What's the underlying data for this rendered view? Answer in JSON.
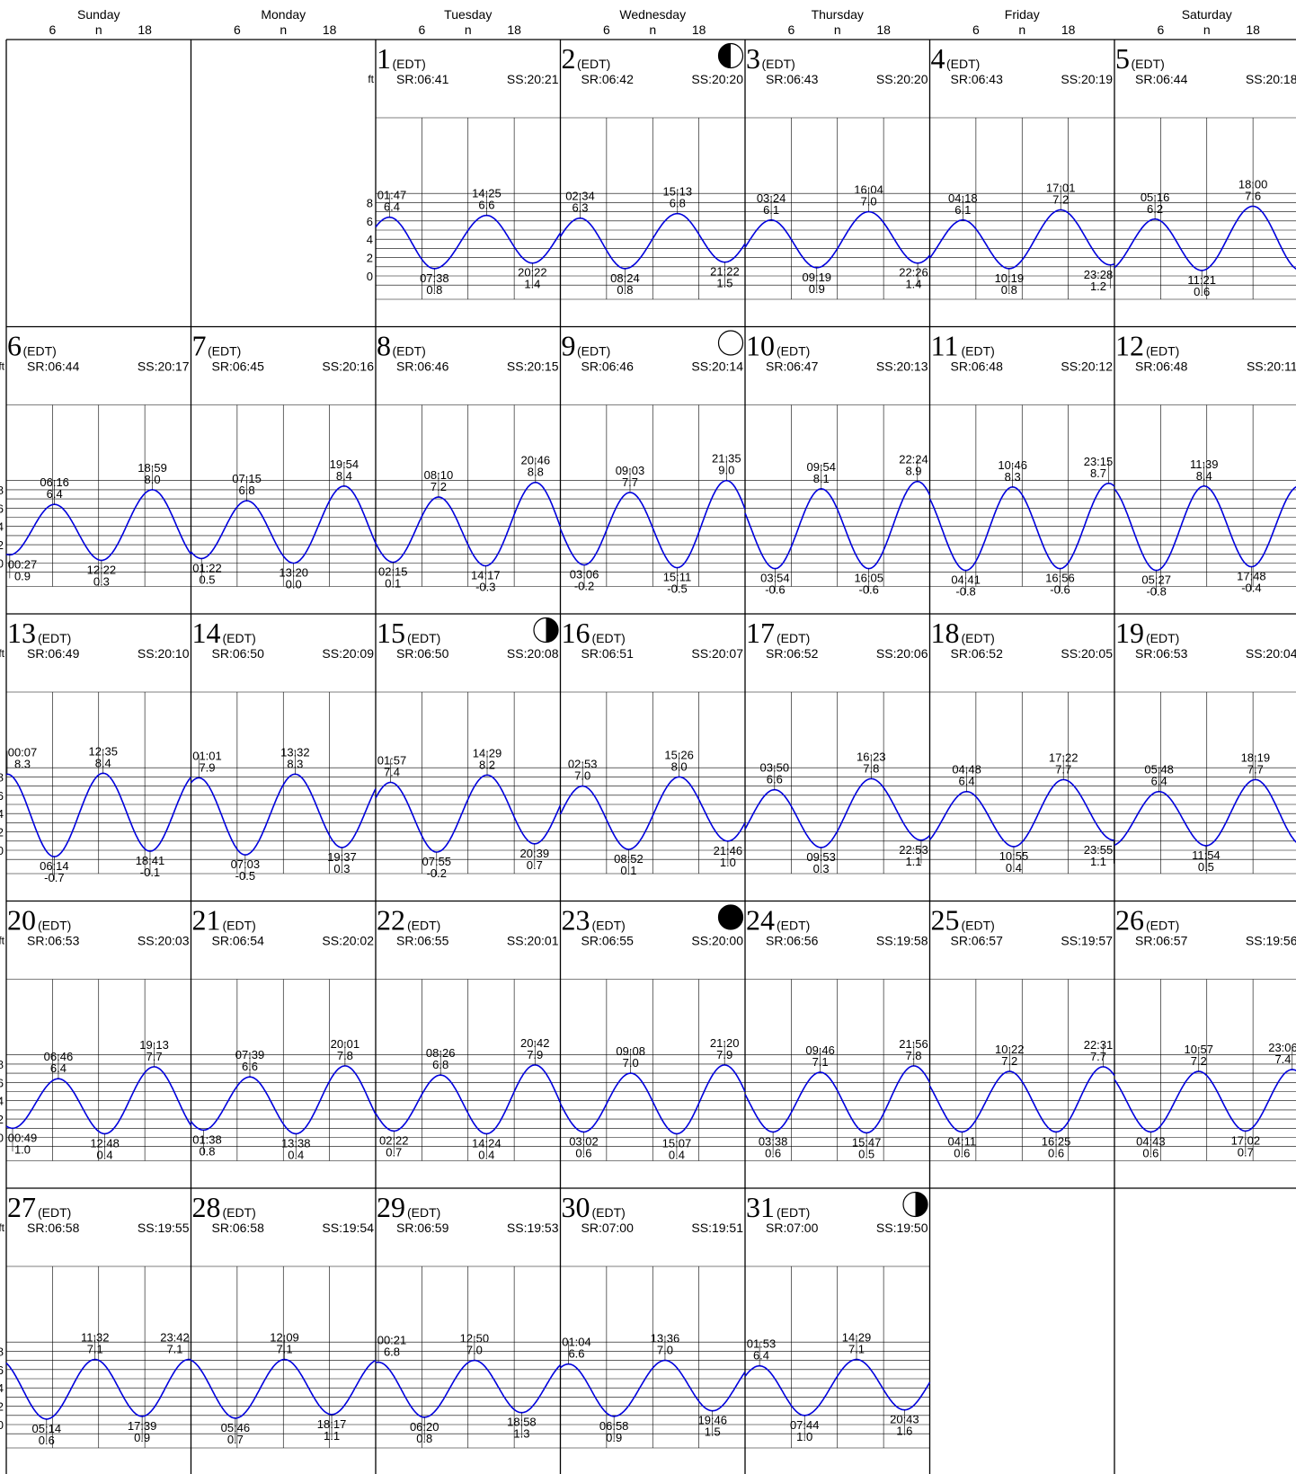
{
  "header": {
    "days": [
      "Sunday",
      "Monday",
      "Tuesday",
      "Wednesday",
      "Thursday",
      "Friday",
      "Saturday"
    ],
    "hour_ticks": [
      "6",
      "n",
      "18"
    ]
  },
  "labels": {
    "tz": "(EDT)",
    "unit": "ft",
    "sr_prefix": "SR:",
    "ss_prefix": "SS:"
  },
  "colors": {
    "curve": "#0000dd",
    "grid": "#000000",
    "background": "#ffffff"
  },
  "chart_data": {
    "type": "line",
    "title": "",
    "xlabel": "",
    "ylabel": "ft",
    "ylim": [
      -1,
      9.5
    ],
    "yticks": [
      0,
      2,
      4,
      6,
      8
    ],
    "x_unit": "hour of day",
    "grid": true,
    "first_weekday_index": 2,
    "days": [
      {
        "day": 1,
        "sunrise": "06:41",
        "sunset": "20:21",
        "moon": "",
        "tides": [
          {
            "t": "01:47",
            "h": 6.4,
            "type": "H"
          },
          {
            "t": "07:38",
            "h": 0.8,
            "type": "L"
          },
          {
            "t": "14:25",
            "h": 6.6,
            "type": "H"
          },
          {
            "t": "20:22",
            "h": 1.4,
            "type": "L"
          }
        ]
      },
      {
        "day": 2,
        "sunrise": "06:42",
        "sunset": "20:20",
        "moon": "first-quarter",
        "tides": [
          {
            "t": "02:34",
            "h": 6.3,
            "type": "H"
          },
          {
            "t": "08:24",
            "h": 0.8,
            "type": "L"
          },
          {
            "t": "15:13",
            "h": 6.8,
            "type": "H"
          },
          {
            "t": "21:22",
            "h": 1.5,
            "type": "L"
          }
        ]
      },
      {
        "day": 3,
        "sunrise": "06:43",
        "sunset": "20:20",
        "moon": "",
        "tides": [
          {
            "t": "03:24",
            "h": 6.1,
            "type": "H"
          },
          {
            "t": "09:19",
            "h": 0.9,
            "type": "L"
          },
          {
            "t": "16:04",
            "h": 7.0,
            "type": "H"
          },
          {
            "t": "22:26",
            "h": 1.4,
            "type": "L"
          }
        ]
      },
      {
        "day": 4,
        "sunrise": "06:43",
        "sunset": "20:19",
        "moon": "",
        "tides": [
          {
            "t": "04:18",
            "h": 6.1,
            "type": "H"
          },
          {
            "t": "10:19",
            "h": 0.8,
            "type": "L"
          },
          {
            "t": "17:01",
            "h": 7.2,
            "type": "H"
          },
          {
            "t": "23:28",
            "h": 1.2,
            "type": "L"
          }
        ]
      },
      {
        "day": 5,
        "sunrise": "06:44",
        "sunset": "20:18",
        "moon": "",
        "tides": [
          {
            "t": "05:16",
            "h": 6.2,
            "type": "H"
          },
          {
            "t": "11:21",
            "h": 0.6,
            "type": "L"
          },
          {
            "t": "18:00",
            "h": 7.6,
            "type": "H"
          }
        ]
      },
      {
        "day": 6,
        "sunrise": "06:44",
        "sunset": "20:17",
        "moon": "",
        "tides": [
          {
            "t": "00:27",
            "h": 0.9,
            "type": "L"
          },
          {
            "t": "06:16",
            "h": 6.4,
            "type": "H"
          },
          {
            "t": "12:22",
            "h": 0.3,
            "type": "L"
          },
          {
            "t": "18:59",
            "h": 8.0,
            "type": "H"
          }
        ]
      },
      {
        "day": 7,
        "sunrise": "06:45",
        "sunset": "20:16",
        "moon": "",
        "tides": [
          {
            "t": "01:22",
            "h": 0.5,
            "type": "L"
          },
          {
            "t": "07:15",
            "h": 6.8,
            "type": "H"
          },
          {
            "t": "13:20",
            "h": 0.0,
            "type": "L"
          },
          {
            "t": "19:54",
            "h": 8.4,
            "type": "H"
          }
        ]
      },
      {
        "day": 8,
        "sunrise": "06:46",
        "sunset": "20:15",
        "moon": "",
        "tides": [
          {
            "t": "02:15",
            "h": 0.1,
            "type": "L"
          },
          {
            "t": "08:10",
            "h": 7.2,
            "type": "H"
          },
          {
            "t": "14:17",
            "h": -0.3,
            "type": "L"
          },
          {
            "t": "20:46",
            "h": 8.8,
            "type": "H"
          }
        ]
      },
      {
        "day": 9,
        "sunrise": "06:46",
        "sunset": "20:14",
        "moon": "full",
        "tides": [
          {
            "t": "03:06",
            "h": -0.2,
            "type": "L"
          },
          {
            "t": "09:03",
            "h": 7.7,
            "type": "H"
          },
          {
            "t": "15:11",
            "h": -0.5,
            "type": "L"
          },
          {
            "t": "21:35",
            "h": 9.0,
            "type": "H"
          }
        ]
      },
      {
        "day": 10,
        "sunrise": "06:47",
        "sunset": "20:13",
        "moon": "",
        "tides": [
          {
            "t": "03:54",
            "h": -0.6,
            "type": "L"
          },
          {
            "t": "09:54",
            "h": 8.1,
            "type": "H"
          },
          {
            "t": "16:05",
            "h": -0.6,
            "type": "L"
          },
          {
            "t": "22:24",
            "h": 8.9,
            "type": "H"
          }
        ]
      },
      {
        "day": 11,
        "sunrise": "06:48",
        "sunset": "20:12",
        "moon": "",
        "tides": [
          {
            "t": "04:41",
            "h": -0.8,
            "type": "L"
          },
          {
            "t": "10:46",
            "h": 8.3,
            "type": "H"
          },
          {
            "t": "16:56",
            "h": -0.6,
            "type": "L"
          },
          {
            "t": "23:15",
            "h": 8.7,
            "type": "H"
          }
        ]
      },
      {
        "day": 12,
        "sunrise": "06:48",
        "sunset": "20:11",
        "moon": "",
        "tides": [
          {
            "t": "05:27",
            "h": -0.8,
            "type": "L"
          },
          {
            "t": "11:39",
            "h": 8.4,
            "type": "H"
          },
          {
            "t": "17:48",
            "h": -0.4,
            "type": "L"
          }
        ]
      },
      {
        "day": 13,
        "sunrise": "06:49",
        "sunset": "20:10",
        "moon": "",
        "tides": [
          {
            "t": "00:07",
            "h": 8.3,
            "type": "H"
          },
          {
            "t": "06:14",
            "h": -0.7,
            "type": "L"
          },
          {
            "t": "12:35",
            "h": 8.4,
            "type": "H"
          },
          {
            "t": "18:41",
            "h": -0.1,
            "type": "L"
          }
        ]
      },
      {
        "day": 14,
        "sunrise": "06:50",
        "sunset": "20:09",
        "moon": "",
        "tides": [
          {
            "t": "01:01",
            "h": 7.9,
            "type": "H"
          },
          {
            "t": "07:03",
            "h": -0.5,
            "type": "L"
          },
          {
            "t": "13:32",
            "h": 8.3,
            "type": "H"
          },
          {
            "t": "19:37",
            "h": 0.3,
            "type": "L"
          }
        ]
      },
      {
        "day": 15,
        "sunrise": "06:50",
        "sunset": "20:08",
        "moon": "last-quarter",
        "tides": [
          {
            "t": "01:57",
            "h": 7.4,
            "type": "H"
          },
          {
            "t": "07:55",
            "h": -0.2,
            "type": "L"
          },
          {
            "t": "14:29",
            "h": 8.2,
            "type": "H"
          },
          {
            "t": "20:39",
            "h": 0.7,
            "type": "L"
          }
        ]
      },
      {
        "day": 16,
        "sunrise": "06:51",
        "sunset": "20:07",
        "moon": "",
        "tides": [
          {
            "t": "02:53",
            "h": 7.0,
            "type": "H"
          },
          {
            "t": "08:52",
            "h": 0.1,
            "type": "L"
          },
          {
            "t": "15:26",
            "h": 8.0,
            "type": "H"
          },
          {
            "t": "21:46",
            "h": 1.0,
            "type": "L"
          }
        ]
      },
      {
        "day": 17,
        "sunrise": "06:52",
        "sunset": "20:06",
        "moon": "",
        "tides": [
          {
            "t": "03:50",
            "h": 6.6,
            "type": "H"
          },
          {
            "t": "09:53",
            "h": 0.3,
            "type": "L"
          },
          {
            "t": "16:23",
            "h": 7.8,
            "type": "H"
          },
          {
            "t": "22:53",
            "h": 1.1,
            "type": "L"
          }
        ]
      },
      {
        "day": 18,
        "sunrise": "06:52",
        "sunset": "20:05",
        "moon": "",
        "tides": [
          {
            "t": "04:48",
            "h": 6.4,
            "type": "H"
          },
          {
            "t": "10:55",
            "h": 0.4,
            "type": "L"
          },
          {
            "t": "17:22",
            "h": 7.7,
            "type": "H"
          },
          {
            "t": "23:55",
            "h": 1.1,
            "type": "L"
          }
        ]
      },
      {
        "day": 19,
        "sunrise": "06:53",
        "sunset": "20:04",
        "moon": "",
        "tides": [
          {
            "t": "05:48",
            "h": 6.4,
            "type": "H"
          },
          {
            "t": "11:54",
            "h": 0.5,
            "type": "L"
          },
          {
            "t": "18:19",
            "h": 7.7,
            "type": "H"
          }
        ]
      },
      {
        "day": 20,
        "sunrise": "06:53",
        "sunset": "20:03",
        "moon": "",
        "tides": [
          {
            "t": "00:49",
            "h": 1.0,
            "type": "L"
          },
          {
            "t": "06:46",
            "h": 6.4,
            "type": "H"
          },
          {
            "t": "12:48",
            "h": 0.4,
            "type": "L"
          },
          {
            "t": "19:13",
            "h": 7.7,
            "type": "H"
          }
        ]
      },
      {
        "day": 21,
        "sunrise": "06:54",
        "sunset": "20:02",
        "moon": "",
        "tides": [
          {
            "t": "01:38",
            "h": 0.8,
            "type": "L"
          },
          {
            "t": "07:39",
            "h": 6.6,
            "type": "H"
          },
          {
            "t": "13:38",
            "h": 0.4,
            "type": "L"
          },
          {
            "t": "20:01",
            "h": 7.8,
            "type": "H"
          }
        ]
      },
      {
        "day": 22,
        "sunrise": "06:55",
        "sunset": "20:01",
        "moon": "",
        "tides": [
          {
            "t": "02:22",
            "h": 0.7,
            "type": "L"
          },
          {
            "t": "08:26",
            "h": 6.8,
            "type": "H"
          },
          {
            "t": "14:24",
            "h": 0.4,
            "type": "L"
          },
          {
            "t": "20:42",
            "h": 7.9,
            "type": "H"
          }
        ]
      },
      {
        "day": 23,
        "sunrise": "06:55",
        "sunset": "20:00",
        "moon": "new",
        "tides": [
          {
            "t": "03:02",
            "h": 0.6,
            "type": "L"
          },
          {
            "t": "09:08",
            "h": 7.0,
            "type": "H"
          },
          {
            "t": "15:07",
            "h": 0.4,
            "type": "L"
          },
          {
            "t": "21:20",
            "h": 7.9,
            "type": "H"
          }
        ]
      },
      {
        "day": 24,
        "sunrise": "06:56",
        "sunset": "19:58",
        "moon": "",
        "tides": [
          {
            "t": "03:38",
            "h": 0.6,
            "type": "L"
          },
          {
            "t": "09:46",
            "h": 7.1,
            "type": "H"
          },
          {
            "t": "15:47",
            "h": 0.5,
            "type": "L"
          },
          {
            "t": "21:56",
            "h": 7.8,
            "type": "H"
          }
        ]
      },
      {
        "day": 25,
        "sunrise": "06:57",
        "sunset": "19:57",
        "moon": "",
        "tides": [
          {
            "t": "04:11",
            "h": 0.6,
            "type": "L"
          },
          {
            "t": "10:22",
            "h": 7.2,
            "type": "H"
          },
          {
            "t": "16:25",
            "h": 0.6,
            "type": "L"
          },
          {
            "t": "22:31",
            "h": 7.7,
            "type": "H"
          }
        ]
      },
      {
        "day": 26,
        "sunrise": "06:57",
        "sunset": "19:56",
        "moon": "",
        "tides": [
          {
            "t": "04:43",
            "h": 0.6,
            "type": "L"
          },
          {
            "t": "10:57",
            "h": 7.2,
            "type": "H"
          },
          {
            "t": "17:02",
            "h": 0.7,
            "type": "L"
          },
          {
            "t": "23:06",
            "h": 7.4,
            "type": "H"
          }
        ]
      },
      {
        "day": 27,
        "sunrise": "06:58",
        "sunset": "19:55",
        "moon": "",
        "tides": [
          {
            "t": "05:14",
            "h": 0.6,
            "type": "L"
          },
          {
            "t": "11:32",
            "h": 7.1,
            "type": "H"
          },
          {
            "t": "17:39",
            "h": 0.9,
            "type": "L"
          },
          {
            "t": "23:42",
            "h": 7.1,
            "type": "H"
          }
        ]
      },
      {
        "day": 28,
        "sunrise": "06:58",
        "sunset": "19:54",
        "moon": "",
        "tides": [
          {
            "t": "05:46",
            "h": 0.7,
            "type": "L"
          },
          {
            "t": "12:09",
            "h": 7.1,
            "type": "H"
          },
          {
            "t": "18:17",
            "h": 1.1,
            "type": "L"
          }
        ]
      },
      {
        "day": 29,
        "sunrise": "06:59",
        "sunset": "19:53",
        "moon": "",
        "tides": [
          {
            "t": "00:21",
            "h": 6.8,
            "type": "H"
          },
          {
            "t": "06:20",
            "h": 0.8,
            "type": "L"
          },
          {
            "t": "12:50",
            "h": 7.0,
            "type": "H"
          },
          {
            "t": "18:58",
            "h": 1.3,
            "type": "L"
          }
        ]
      },
      {
        "day": 30,
        "sunrise": "07:00",
        "sunset": "19:51",
        "moon": "",
        "tides": [
          {
            "t": "01:04",
            "h": 6.6,
            "type": "H"
          },
          {
            "t": "06:58",
            "h": 0.9,
            "type": "L"
          },
          {
            "t": "13:36",
            "h": 7.0,
            "type": "H"
          },
          {
            "t": "19:46",
            "h": 1.5,
            "type": "L"
          }
        ]
      },
      {
        "day": 31,
        "sunrise": "07:00",
        "sunset": "19:50",
        "moon": "last-quarter",
        "tides": [
          {
            "t": "01:53",
            "h": 6.4,
            "type": "H"
          },
          {
            "t": "07:44",
            "h": 1.0,
            "type": "L"
          },
          {
            "t": "14:29",
            "h": 7.1,
            "type": "H"
          },
          {
            "t": "20:43",
            "h": 1.6,
            "type": "L"
          }
        ]
      }
    ]
  }
}
